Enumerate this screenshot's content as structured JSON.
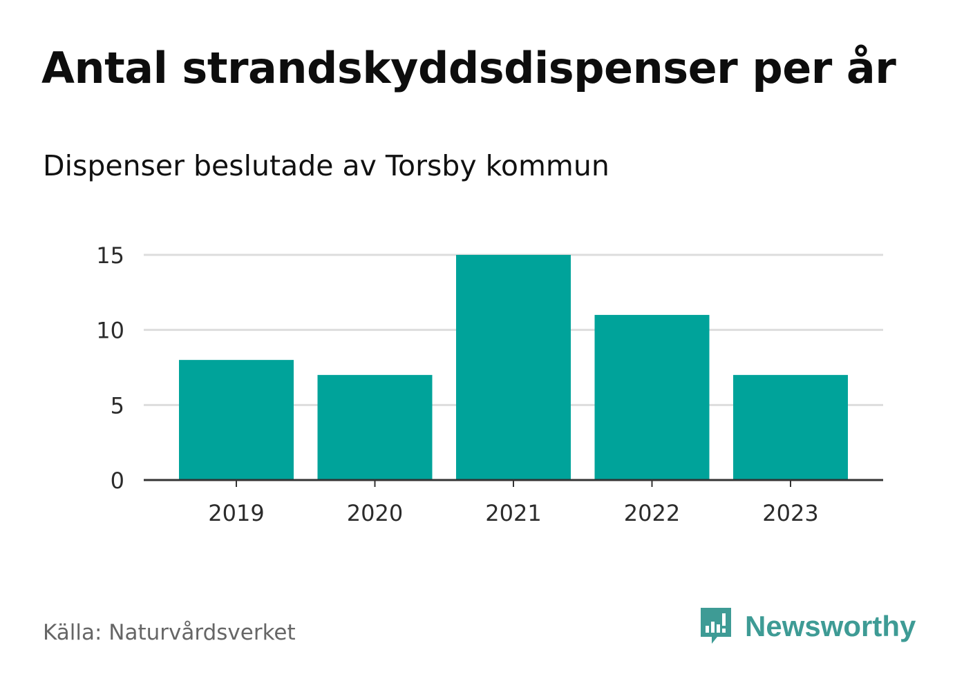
{
  "title": "Antal strandskyddsdispenser per år",
  "subtitle": "Dispenser beslutade av Torsby kommun",
  "source": "Källa: Naturvårdsverket",
  "brand": {
    "name": "Newsworthy",
    "icon": "newsworthy-logo-icon",
    "color": "#3e9b95"
  },
  "colors": {
    "bar": "#00a39a",
    "grid": "#dddddd",
    "axis": "#333333"
  },
  "chart_data": {
    "type": "bar",
    "title": "Antal strandskyddsdispenser per år",
    "subtitle": "Dispenser beslutade av Torsby kommun",
    "categories": [
      "2019",
      "2020",
      "2021",
      "2022",
      "2023"
    ],
    "values": [
      8,
      7,
      15,
      11,
      7
    ],
    "xlabel": "",
    "ylabel": "",
    "ylim": [
      0,
      15
    ],
    "yticks": [
      0,
      5,
      10,
      15
    ],
    "grid": true,
    "legend": "none"
  }
}
